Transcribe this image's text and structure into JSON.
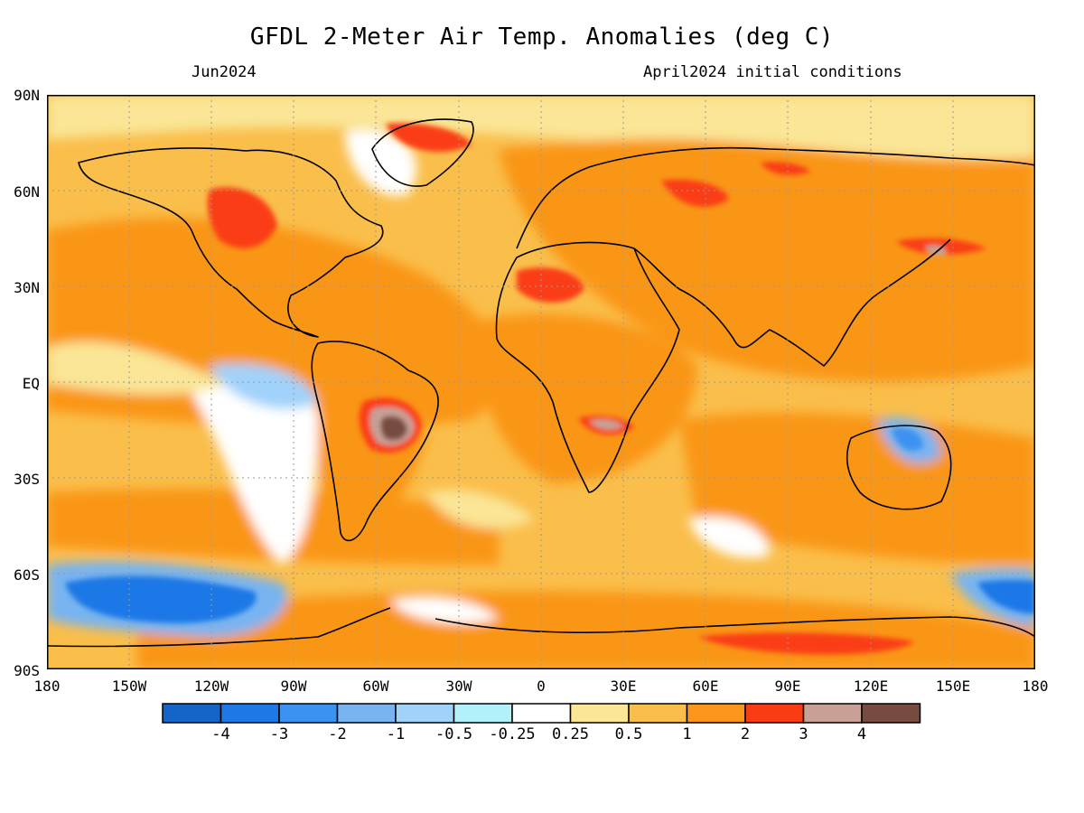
{
  "title": "GFDL 2-Meter Air Temp. Anomalies (deg C)",
  "subtitle_left": "Jun2024",
  "subtitle_right": "April2024 initial conditions",
  "lat_labels": [
    "90N",
    "60N",
    "30N",
    "EQ",
    "30S",
    "60S",
    "90S"
  ],
  "lon_labels": [
    "180",
    "150W",
    "120W",
    "90W",
    "60W",
    "30W",
    "0",
    "30E",
    "60E",
    "90E",
    "120E",
    "150E",
    "180"
  ],
  "colorbar": {
    "colors": [
      "#1565c8",
      "#1e78e6",
      "#3c92f0",
      "#78b4f0",
      "#a0d2fa",
      "#b4f0fa",
      "#ffffff",
      "#fae696",
      "#fabe4b",
      "#fa9619",
      "#fa3c14",
      "#c8a096",
      "#784b41"
    ],
    "labels": [
      "-4",
      "-3",
      "-2",
      "-1",
      "-0.5",
      "-0.25",
      "0.25",
      "0.5",
      "1",
      "2",
      "3",
      "4"
    ]
  },
  "anomaly_regions": [
    {
      "name": "arctic-band",
      "color": "#fae696"
    },
    {
      "name": "greenland-warm",
      "color": "#fa3c14"
    },
    {
      "name": "north-america-warm",
      "color": "#fa3c14"
    },
    {
      "name": "sahara-warm",
      "color": "#fa3c14"
    },
    {
      "name": "siberia-warm",
      "color": "#fa3c14"
    },
    {
      "name": "south-america-hot",
      "color": "#784b41"
    },
    {
      "name": "southern-africa-hot",
      "color": "#c8a096"
    },
    {
      "name": "japan-hot",
      "color": "#c8a096"
    },
    {
      "name": "southern-ocean-cold-west",
      "color": "#1e78e6"
    },
    {
      "name": "southern-ocean-cold-east",
      "color": "#1e78e6"
    },
    {
      "name": "australia-cool",
      "color": "#3c92f0"
    },
    {
      "name": "east-pacific-cool",
      "color": "#78b4f0"
    },
    {
      "name": "antarctica-warm",
      "color": "#fa3c14"
    }
  ]
}
